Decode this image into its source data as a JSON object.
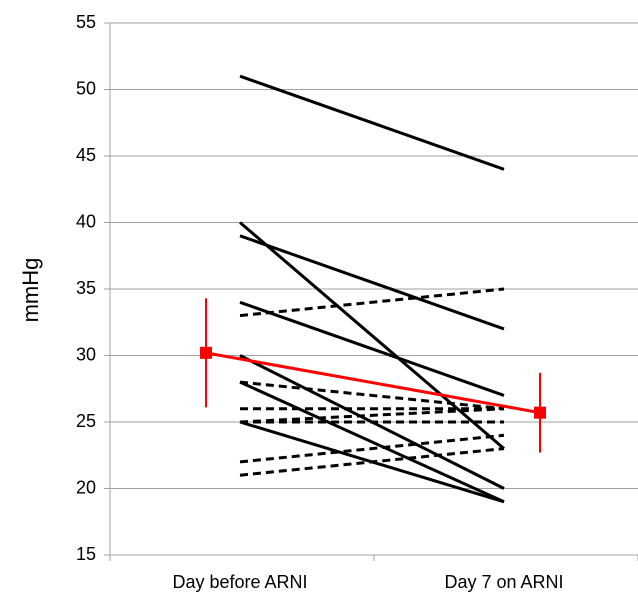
{
  "chart_data": {
    "type": "paired-line",
    "ylabel": "mmHg",
    "categories": [
      "Day before ARNI",
      "Day 7 on ARNI"
    ],
    "ylim": [
      15,
      55
    ],
    "yticks": [
      15,
      20,
      25,
      30,
      35,
      40,
      45,
      50,
      55
    ],
    "grid": true,
    "series": [
      {
        "color": "#000000",
        "dashed": false,
        "values": [
          51,
          44
        ]
      },
      {
        "color": "#000000",
        "dashed": false,
        "values": [
          40,
          23
        ]
      },
      {
        "color": "#000000",
        "dashed": false,
        "values": [
          39,
          32
        ]
      },
      {
        "color": "#000000",
        "dashed": false,
        "values": [
          34,
          27
        ]
      },
      {
        "color": "#000000",
        "dashed": false,
        "values": [
          30,
          20
        ]
      },
      {
        "color": "#000000",
        "dashed": false,
        "values": [
          28,
          19
        ]
      },
      {
        "color": "#000000",
        "dashed": false,
        "values": [
          25,
          19
        ]
      },
      {
        "color": "#000000",
        "dashed": true,
        "values": [
          33,
          35
        ]
      },
      {
        "color": "#000000",
        "dashed": true,
        "values": [
          28,
          26
        ]
      },
      {
        "color": "#000000",
        "dashed": true,
        "values": [
          26,
          26
        ]
      },
      {
        "color": "#000000",
        "dashed": true,
        "values": [
          25,
          26
        ]
      },
      {
        "color": "#000000",
        "dashed": true,
        "values": [
          25,
          25
        ]
      },
      {
        "color": "#000000",
        "dashed": true,
        "values": [
          22,
          24
        ]
      },
      {
        "color": "#000000",
        "dashed": true,
        "values": [
          21,
          23
        ]
      },
      {
        "color": "#ff0000",
        "dashed": false,
        "values": [
          30.2,
          25.7
        ],
        "error": [
          4.1,
          3.0
        ]
      }
    ]
  }
}
